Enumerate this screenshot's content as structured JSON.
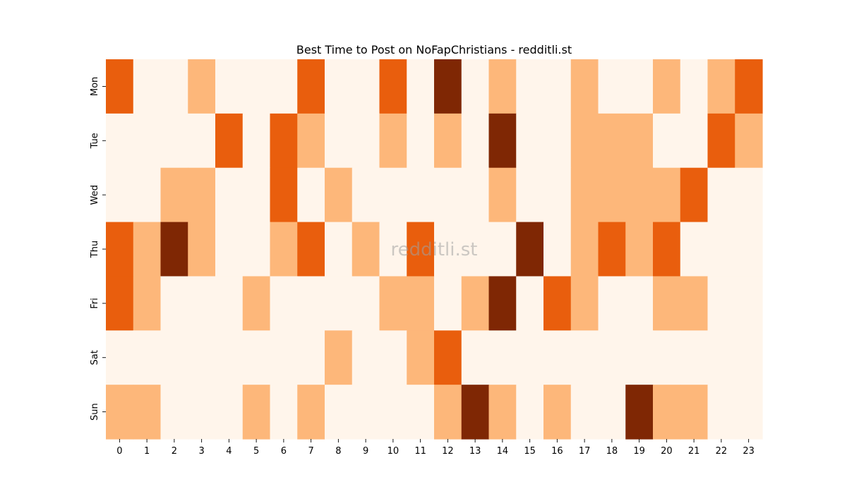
{
  "chart_data": {
    "type": "heatmap",
    "title": "Best Time to Post on NoFapChristians - redditli.st",
    "watermark": "redditli.st",
    "xlabel": "",
    "ylabel": "",
    "x_categories": [
      "0",
      "1",
      "2",
      "3",
      "4",
      "5",
      "6",
      "7",
      "8",
      "9",
      "10",
      "11",
      "12",
      "13",
      "14",
      "15",
      "16",
      "17",
      "18",
      "19",
      "20",
      "21",
      "22",
      "23"
    ],
    "y_categories": [
      "Mon",
      "Tue",
      "Wed",
      "Thu",
      "Fri",
      "Sat",
      "Sun"
    ],
    "values": [
      [
        2,
        0,
        0,
        1,
        0,
        0,
        0,
        2,
        0,
        0,
        2,
        0,
        3,
        0,
        1,
        0,
        0,
        1,
        0,
        0,
        1,
        0,
        1,
        2
      ],
      [
        0,
        0,
        0,
        0,
        2,
        0,
        2,
        1,
        0,
        0,
        1,
        0,
        1,
        0,
        3,
        0,
        0,
        1,
        1,
        1,
        0,
        0,
        2,
        1
      ],
      [
        0,
        0,
        1,
        1,
        0,
        0,
        2,
        0,
        1,
        0,
        0,
        0,
        0,
        0,
        1,
        0,
        0,
        1,
        1,
        1,
        1,
        2,
        0,
        0
      ],
      [
        2,
        1,
        3,
        1,
        0,
        0,
        1,
        2,
        0,
        1,
        0,
        2,
        0,
        0,
        0,
        3,
        0,
        1,
        2,
        1,
        2,
        0,
        0,
        0
      ],
      [
        2,
        1,
        0,
        0,
        0,
        1,
        0,
        0,
        0,
        0,
        1,
        1,
        0,
        1,
        3,
        0,
        2,
        1,
        0,
        0,
        1,
        1,
        0,
        0
      ],
      [
        0,
        0,
        0,
        0,
        0,
        0,
        0,
        0,
        1,
        0,
        0,
        1,
        2,
        0,
        0,
        0,
        0,
        0,
        0,
        0,
        0,
        0,
        0,
        0
      ],
      [
        1,
        1,
        0,
        0,
        0,
        1,
        0,
        1,
        0,
        0,
        0,
        0,
        1,
        3,
        1,
        0,
        1,
        0,
        0,
        3,
        1,
        1,
        0,
        0
      ]
    ],
    "value_range": [
      0,
      3
    ],
    "color_scale": [
      "#fff5eb",
      "#fdb77a",
      "#e95e0d",
      "#7f2704"
    ],
    "colorbar": false,
    "grid": false
  }
}
